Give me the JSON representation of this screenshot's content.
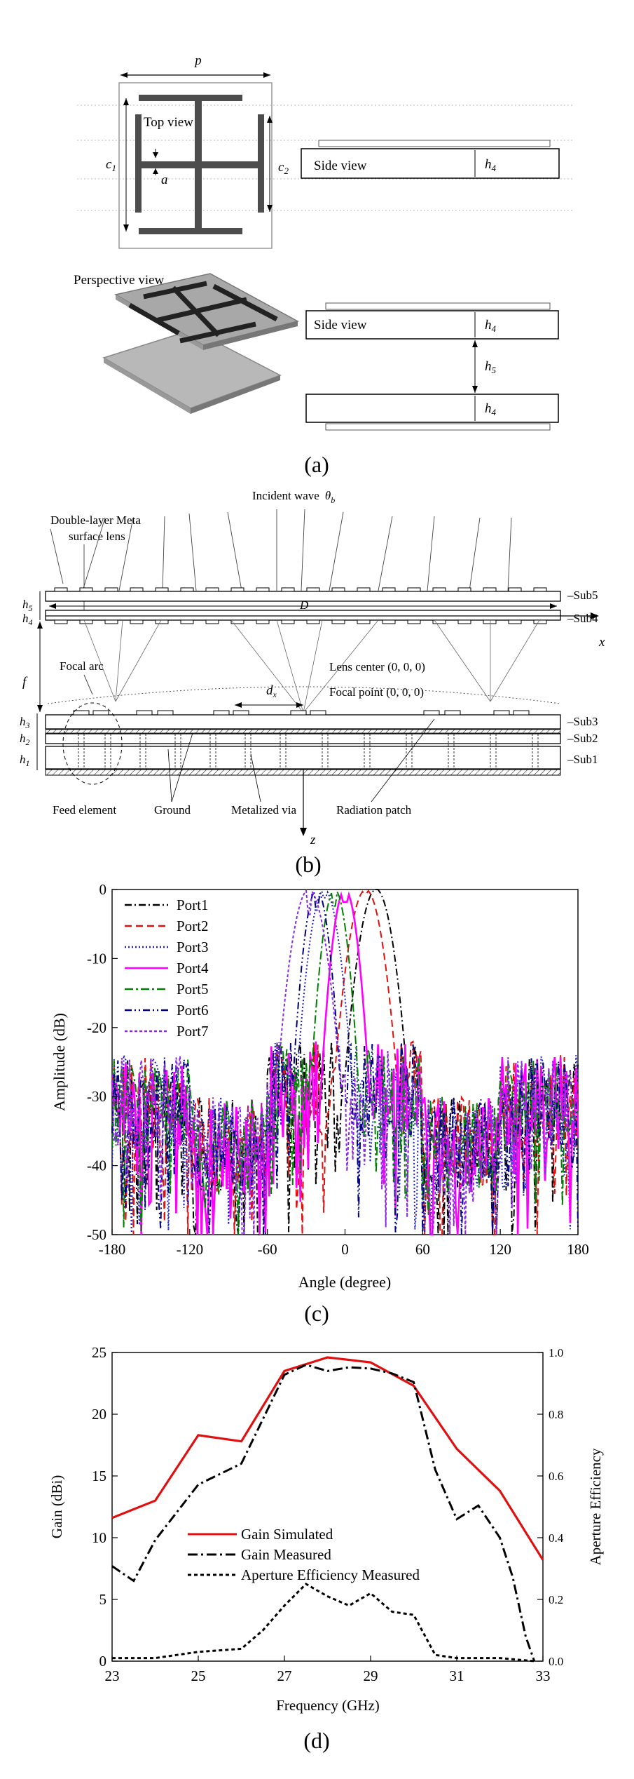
{
  "panel_a": {
    "caption": "(a)",
    "labels": {
      "p": "p",
      "c1": "c",
      "c1_sub": "1",
      "c2": "c",
      "c2_sub": "2",
      "a": "a",
      "top_view": "Top view",
      "side_view": "Side view",
      "h4": "h",
      "h4_sub": "4",
      "h5": "h",
      "h5_sub": "5",
      "perspective_view": "Perspective view"
    }
  },
  "panel_b": {
    "caption": "(b)",
    "labels": {
      "incident_wave": "Incident wave",
      "theta": "θ",
      "theta_sub": "b",
      "double_layer": "Double-layer Meta",
      "surface_lens": "surface lens",
      "sub5": "Sub5",
      "sub4": "Sub4",
      "sub3": "Sub3",
      "sub2": "Sub2",
      "sub1": "Sub1",
      "D": "D",
      "x": "x",
      "z": "z",
      "h5": "h",
      "h5_sub": "5",
      "h4": "h",
      "h4_sub": "4",
      "h3": "h",
      "h3_sub": "3",
      "h2": "h",
      "h2_sub": "2",
      "h1": "h",
      "h1_sub": "1",
      "f": "f",
      "focal_arc": "Focal arc",
      "lens_center": "Lens center (0, 0, 0)",
      "dx": "d",
      "dx_sub": "x",
      "focal_point": "Focal point (0, 0, 0)",
      "feed_element": "Feed element",
      "ground": "Ground",
      "metalized_via": "Metalized via",
      "radiation_patch": "Radiation patch"
    }
  },
  "panel_c": {
    "caption": "(c)",
    "chart_data": {
      "type": "line",
      "xlabel": "Angle (degree)",
      "ylabel": "Amplitude (dB)",
      "xlim": [
        -180,
        180
      ],
      "ylim": [
        -50,
        0
      ],
      "xticks": [
        "-180",
        "-120",
        "-60",
        "0",
        "60",
        "120",
        "180"
      ],
      "yticks": [
        "0",
        "-10",
        "-20",
        "-30",
        "-40",
        "-50"
      ],
      "legend_position": "top-left",
      "series": [
        {
          "name": "Port1",
          "color": "#000000",
          "dash": "10,4,2,4",
          "peak": 24,
          "width": 16
        },
        {
          "name": "Port2",
          "color": "#e01010",
          "dash": "10,6",
          "peak": 16,
          "width": 16
        },
        {
          "name": "Port3",
          "color": "#2020c8",
          "dash": "2,3",
          "peak": -16,
          "width": 14
        },
        {
          "name": "Port4",
          "color": "#ff00ff",
          "dash": "",
          "peak": 0,
          "width": 12
        },
        {
          "name": "Port5",
          "color": "#008000",
          "dash": "12,4,3,4",
          "peak": -8,
          "width": 12
        },
        {
          "name": "Port6",
          "color": "#000080",
          "dash": "10,4,2,4,2,4",
          "peak": -22,
          "width": 12
        },
        {
          "name": "Port7",
          "color": "#8a2be2",
          "dash": "4,3",
          "peak": -28,
          "width": 16
        }
      ]
    }
  },
  "panel_d": {
    "caption": "(d)",
    "chart_data": {
      "type": "line",
      "xlabel": "Frequency (GHz)",
      "ylabel": "Gain (dBi)",
      "ylabel_right": "Aperture Efficiency",
      "xlim": [
        23,
        33
      ],
      "ylim": [
        0,
        25
      ],
      "ylim_right": [
        0,
        1.0
      ],
      "xticks": [
        "23",
        "25",
        "27",
        "29",
        "31",
        "33"
      ],
      "yticks": [
        "0",
        "5",
        "10",
        "15",
        "20",
        "25"
      ],
      "yticks_right": [
        "0.0",
        "0.2",
        "0.4",
        "0.6",
        "0.8",
        "1.0"
      ],
      "legend_position": "bottom-center",
      "series": [
        {
          "name": "Gain Simulated",
          "color": "#e01010",
          "dash": "",
          "axis": "left",
          "x": [
            23,
            24,
            25,
            26,
            27,
            28,
            29,
            30,
            31,
            32,
            33
          ],
          "y": [
            11.6,
            13.0,
            18.3,
            17.8,
            23.5,
            24.6,
            24.2,
            22.3,
            17.2,
            13.8,
            8.2
          ]
        },
        {
          "name": "Gain Measured",
          "color": "#000000",
          "dash": "14,5,3,5",
          "axis": "left",
          "x": [
            23,
            23.5,
            24,
            25,
            26,
            27,
            27.5,
            28,
            28.5,
            29,
            29.5,
            30,
            30.5,
            31,
            31.5,
            32,
            32.3,
            32.6,
            32.8
          ],
          "y": [
            7.7,
            6.5,
            9.8,
            14.3,
            16.0,
            23.2,
            24.0,
            23.5,
            23.8,
            23.7,
            23.3,
            22.6,
            15.5,
            11.5,
            12.6,
            10.0,
            6.8,
            2.0,
            0.0
          ]
        },
        {
          "name": "Aperture Efficiency Measured",
          "color": "#000000",
          "dash": "5,4",
          "axis": "right",
          "x": [
            23,
            24,
            25,
            26,
            26.5,
            27,
            27.5,
            28,
            28.5,
            29,
            29.5,
            30,
            30.5,
            31,
            32,
            32.8
          ],
          "y": [
            0.01,
            0.01,
            0.03,
            0.04,
            0.1,
            0.18,
            0.25,
            0.21,
            0.18,
            0.22,
            0.16,
            0.15,
            0.02,
            0.01,
            0.01,
            0.0
          ]
        }
      ]
    }
  }
}
